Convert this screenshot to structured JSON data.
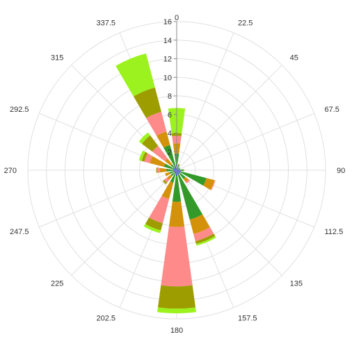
{
  "chart_data": {
    "type": "polar-stacked-bar",
    "title": "",
    "directions": [
      "0",
      "22.5",
      "45",
      "67.5",
      "90",
      "112.5",
      "135",
      "157.5",
      "180",
      "202.5",
      "225",
      "247.5",
      "270",
      "292.5",
      "315",
      "337.5"
    ],
    "radial_axis": {
      "min": 0,
      "max": 16,
      "ticks": [
        "0",
        "2",
        "4",
        "6",
        "8",
        "10",
        "12",
        "14",
        "16"
      ]
    },
    "series": [
      {
        "color": "#2b3fbf",
        "values": [
          0.6,
          0.3,
          0.2,
          0.2,
          0.4,
          0.5,
          0.4,
          0.5,
          0.6,
          0.4,
          0.3,
          0.3,
          0.4,
          0.4,
          0.3,
          0.5
        ]
      },
      {
        "color": "#339a2a",
        "values": [
          1.2,
          0.3,
          0.2,
          0.2,
          0.3,
          2.8,
          0.8,
          5.0,
          2.8,
          1.0,
          0.5,
          0.5,
          0.7,
          1.0,
          0.5,
          2.3
        ]
      },
      {
        "color": "#d4920a",
        "values": [
          1.1,
          0.1,
          0.0,
          0.0,
          0.1,
          0.9,
          0.4,
          1.6,
          2.7,
          1.8,
          0.5,
          0.5,
          0.7,
          1.6,
          0.8,
          1.5
        ]
      },
      {
        "color": "#fe8a8a",
        "values": [
          0.8,
          0.0,
          0.0,
          0.0,
          0.0,
          0.1,
          0.2,
          0.8,
          6.4,
          2.7,
          0.4,
          0.0,
          0.3,
          0.6,
          1.7,
          2.2
        ]
      },
      {
        "color": "#9d9d00",
        "values": [
          0.3,
          0.0,
          0.0,
          0.0,
          0.0,
          0.0,
          0.0,
          0.3,
          2.4,
          0.8,
          0.2,
          0.0,
          0.1,
          0.3,
          1.4,
          2.7
        ]
      },
      {
        "color": "#9cf21e",
        "values": [
          2.7,
          0.0,
          0.0,
          0.0,
          0.0,
          0.0,
          0.0,
          0.2,
          0.5,
          0.3,
          0.0,
          0.0,
          0.0,
          0.3,
          0.4,
          3.8
        ]
      }
    ]
  }
}
